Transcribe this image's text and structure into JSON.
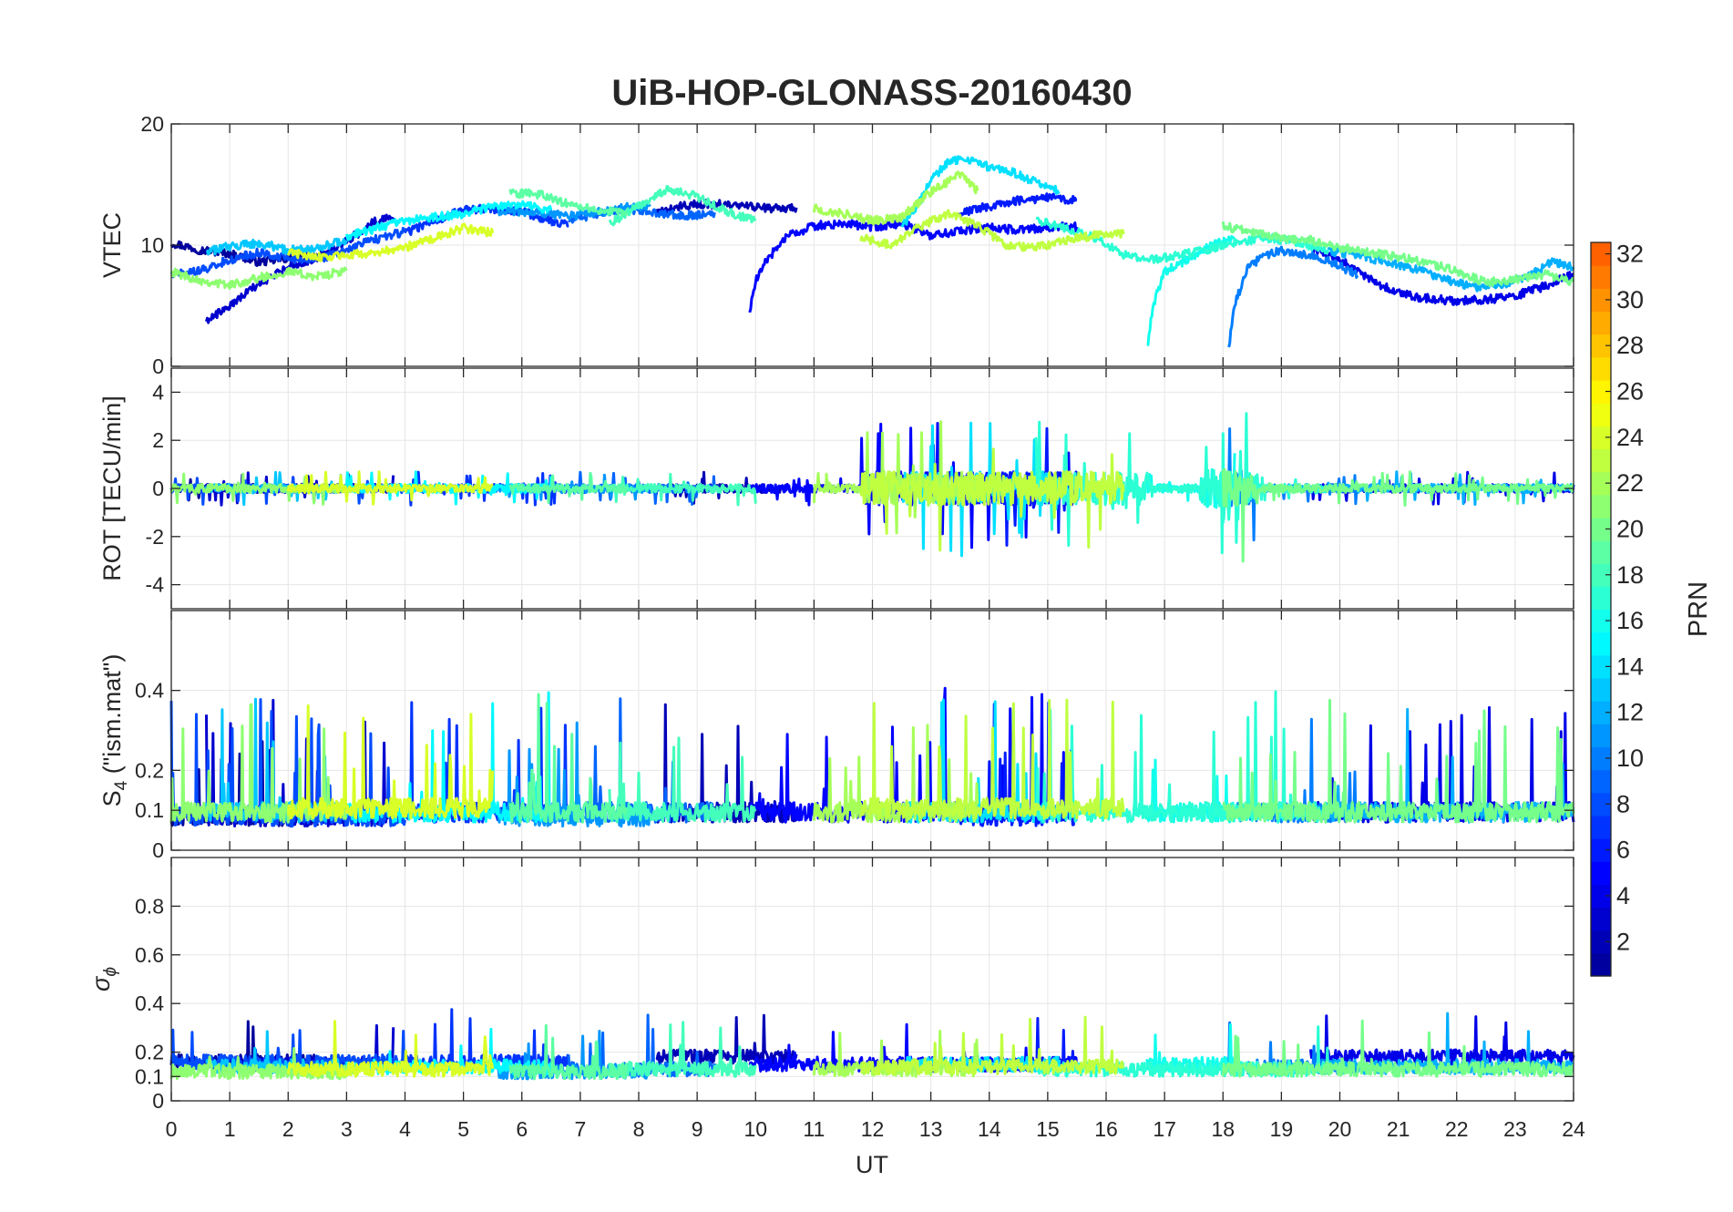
{
  "chart_data": {
    "type": "line",
    "title": "UiB-HOP-GLONASS-20160430",
    "xlabel": "UT",
    "xlim": [
      0,
      24
    ],
    "xticks": [
      "0",
      "1",
      "2",
      "3",
      "4",
      "5",
      "6",
      "7",
      "8",
      "9",
      "10",
      "11",
      "12",
      "13",
      "14",
      "15",
      "16",
      "17",
      "18",
      "19",
      "20",
      "21",
      "22",
      "23",
      "24"
    ],
    "grid": true,
    "colormap": "jet",
    "colorbar": {
      "label": "PRN",
      "range": [
        1,
        32
      ],
      "ticks": [
        "2",
        "4",
        "6",
        "8",
        "10",
        "12",
        "14",
        "16",
        "18",
        "20",
        "22",
        "24",
        "26",
        "28",
        "30",
        "32"
      ]
    },
    "panels": [
      {
        "id": "vtec",
        "ylabel": "VTEC",
        "ylim": [
          0,
          20
        ],
        "yticks": [
          "0",
          "10",
          "20"
        ]
      },
      {
        "id": "rot",
        "ylabel": "ROT [TECU/min]",
        "ylim": [
          -5,
          5
        ],
        "yticks": [
          "-4",
          "-2",
          "0",
          "2",
          "4"
        ]
      },
      {
        "id": "s4",
        "ylabel_main": "S",
        "ylabel_sub": "4",
        "ylabel_rest": " (\"ism.mat\")",
        "ylim": [
          0,
          0.6
        ],
        "yticks": [
          "0",
          "0.1",
          "0.2",
          "0.4"
        ]
      },
      {
        "id": "sigma",
        "ylabel_main": "σ",
        "ylabel_sub": "ϕ",
        "ylim": [
          0,
          1
        ],
        "yticks": [
          "0",
          "0.1",
          "0.2",
          "0.4",
          "0.6",
          "0.8"
        ]
      }
    ],
    "series": [
      {
        "prn": 1,
        "vtec": [
          [
            0,
            10.2
          ],
          [
            0.5,
            9.6
          ],
          [
            1,
            9.3
          ],
          [
            1.5,
            8.6
          ],
          [
            2,
            8.9
          ],
          [
            2.5,
            9.1
          ]
        ],
        "s4base": 0.06,
        "sigbase": 0.16
      },
      {
        "prn": 2,
        "vtec": [
          [
            8.3,
            12.6
          ],
          [
            8.8,
            13.3
          ],
          [
            9.3,
            13.4
          ],
          [
            9.8,
            13.2
          ],
          [
            10.3,
            13.0
          ],
          [
            10.7,
            13.1
          ]
        ],
        "s4base": 0.07,
        "sigbase": 0.18
      },
      {
        "prn": 3,
        "vtec": [
          [
            0.6,
            3.8
          ],
          [
            1,
            5.0
          ],
          [
            1.5,
            6.8
          ],
          [
            2,
            8.2
          ],
          [
            2.5,
            9.0
          ],
          [
            3,
            10.3
          ],
          [
            3.5,
            12.0
          ],
          [
            3.8,
            12.3
          ]
        ],
        "s4base": 0.06,
        "sigbase": 0.15
      },
      {
        "prn": 4,
        "vtec": [
          [
            19.5,
            9.8
          ],
          [
            20,
            8.8
          ],
          [
            20.5,
            7.2
          ],
          [
            21,
            6.0
          ],
          [
            21.5,
            5.6
          ],
          [
            22,
            5.4
          ],
          [
            22.5,
            5.5
          ],
          [
            23,
            5.8
          ],
          [
            23.5,
            6.6
          ],
          [
            24,
            7.6
          ]
        ],
        "s4base": 0.07,
        "sigbase": 0.18
      },
      {
        "prn": 5,
        "vtec": [
          [
            9.9,
            4.5
          ],
          [
            10,
            7.0
          ],
          [
            10.2,
            8.8
          ],
          [
            10.5,
            10.6
          ],
          [
            11,
            11.6
          ],
          [
            11.5,
            11.8
          ],
          [
            12,
            11.5
          ],
          [
            12.5,
            11.8
          ],
          [
            13,
            10.8
          ],
          [
            13.5,
            11.2
          ],
          [
            14,
            11.5
          ],
          [
            14.5,
            11.2
          ],
          [
            15,
            11.5
          ],
          [
            15.5,
            11.5
          ]
        ],
        "s4base": 0.07,
        "sigbase": 0.15
      },
      {
        "prn": 6,
        "vtec": [
          [
            13.5,
            12.7
          ],
          [
            14,
            13.2
          ],
          [
            14.5,
            13.7
          ],
          [
            15,
            13.9
          ],
          [
            15.5,
            13.7
          ]
        ],
        "s4base": 0.06,
        "sigbase": 0.15
      },
      {
        "prn": 7,
        "vtec": [
          [
            4,
            11.0
          ],
          [
            4.5,
            12.0
          ],
          [
            5,
            12.9
          ],
          [
            5.5,
            13.0
          ],
          [
            6,
            12.8
          ],
          [
            6.5,
            12.0
          ],
          [
            6.8,
            11.6
          ]
        ],
        "s4base": 0.07,
        "sigbase": 0.16
      },
      {
        "prn": 8,
        "vtec": [
          [
            0,
            7.6
          ],
          [
            0.5,
            7.9
          ],
          [
            1,
            8.8
          ],
          [
            1.5,
            9.4
          ],
          [
            2,
            8.9
          ],
          [
            2.5,
            8.8
          ],
          [
            3,
            9.6
          ],
          [
            3.5,
            10.5
          ],
          [
            4,
            11.1
          ]
        ],
        "s4base": 0.06,
        "sigbase": 0.16
      },
      {
        "prn": 9,
        "vtec": [
          [
            6.8,
            12.0
          ],
          [
            7.3,
            12.6
          ],
          [
            7.8,
            13.0
          ],
          [
            8.3,
            12.7
          ],
          [
            8.8,
            12.4
          ],
          [
            9.3,
            12.7
          ]
        ],
        "s4base": 0.07,
        "sigbase": 0.13
      },
      {
        "prn": 10,
        "vtec": [
          [
            18.1,
            1.5
          ],
          [
            18.2,
            5.0
          ],
          [
            18.4,
            8.0
          ],
          [
            18.7,
            9.2
          ],
          [
            19,
            9.5
          ],
          [
            19.5,
            9.2
          ],
          [
            20,
            8.3
          ],
          [
            20.3,
            7.5
          ]
        ],
        "s4base": 0.07,
        "sigbase": 0.14
      },
      {
        "prn": 11,
        "vtec": [
          [
            5.6,
            12.8
          ],
          [
            6.2,
            12.7
          ],
          [
            6.8,
            12.4
          ],
          [
            7.3,
            12.7
          ],
          [
            7.8,
            13.1
          ],
          [
            8.2,
            13.2
          ]
        ],
        "s4base": 0.06,
        "sigbase": 0.12
      },
      {
        "prn": 12,
        "vtec": [
          [
            19.8,
            9.5
          ],
          [
            20.3,
            9.2
          ],
          [
            20.8,
            8.6
          ],
          [
            21.3,
            8.0
          ],
          [
            21.8,
            7.2
          ],
          [
            22.3,
            6.5
          ],
          [
            22.8,
            6.8
          ],
          [
            23.3,
            7.6
          ],
          [
            23.6,
            8.6
          ],
          [
            24,
            8.2
          ]
        ],
        "s4base": 0.07,
        "sigbase": 0.14
      },
      {
        "prn": 13,
        "vtec": [
          [
            0.6,
            9.4
          ],
          [
            1,
            9.9
          ],
          [
            1.5,
            10.2
          ],
          [
            2,
            9.6
          ],
          [
            2.5,
            9.8
          ],
          [
            3,
            10.4
          ]
        ],
        "s4base": 0.07,
        "sigbase": 0.14
      },
      {
        "prn": 14,
        "vtec": [
          [
            12.5,
            11.5
          ],
          [
            12.8,
            13.5
          ],
          [
            13,
            15.4
          ],
          [
            13.3,
            16.8
          ],
          [
            13.6,
            17.2
          ],
          [
            14,
            16.4
          ],
          [
            14.4,
            16.0
          ],
          [
            14.8,
            15.2
          ],
          [
            15.2,
            14.4
          ]
        ],
        "s4base": 0.07,
        "sigbase": 0.15
      },
      {
        "prn": 15,
        "vtec": [
          [
            3,
            10.7
          ],
          [
            3.5,
            11.4
          ],
          [
            4,
            12.0
          ],
          [
            4.5,
            12.3
          ],
          [
            5,
            12.6
          ],
          [
            5.5,
            13.2
          ],
          [
            6,
            13.3
          ],
          [
            6.5,
            12.9
          ]
        ],
        "s4base": 0.07,
        "sigbase": 0.14
      },
      {
        "prn": 16,
        "vtec": [
          [
            16.7,
            1.5
          ],
          [
            16.8,
            5.0
          ],
          [
            17,
            7.8
          ],
          [
            17.3,
            8.6
          ],
          [
            17.6,
            9.4
          ],
          [
            17.8,
            10.0
          ],
          [
            18.2,
            10.5
          ]
        ],
        "s4base": 0.07,
        "sigbase": 0.15
      },
      {
        "prn": 17,
        "vtec": [
          [
            14.8,
            12.0
          ],
          [
            15.3,
            11.4
          ],
          [
            15.8,
            10.6
          ],
          [
            16.3,
            9.2
          ],
          [
            16.8,
            8.8
          ],
          [
            17.3,
            9.2
          ],
          [
            17.8,
            9.7
          ],
          [
            18.3,
            10.3
          ],
          [
            18.8,
            10.6
          ],
          [
            19.3,
            10.2
          ],
          [
            19.8,
            9.6
          ]
        ],
        "s4base": 0.07,
        "sigbase": 0.13
      },
      {
        "prn": 18,
        "vtec": [
          [
            7.5,
            11.8
          ],
          [
            8,
            13.2
          ],
          [
            8.5,
            14.6
          ],
          [
            9,
            14.0
          ],
          [
            9.5,
            12.8
          ],
          [
            10,
            12.0
          ]
        ],
        "s4base": 0.07,
        "sigbase": 0.13
      },
      {
        "prn": 19,
        "vtec": [
          [
            5.8,
            14.3
          ],
          [
            6.3,
            14.2
          ],
          [
            6.8,
            13.4
          ],
          [
            7.3,
            12.9
          ],
          [
            7.8,
            12.6
          ]
        ],
        "s4base": 0.07,
        "sigbase": 0.12
      },
      {
        "prn": 20,
        "vtec": [
          [
            18,
            11.6
          ],
          [
            18.5,
            11.0
          ],
          [
            19,
            10.6
          ],
          [
            19.5,
            10.4
          ],
          [
            20,
            9.8
          ],
          [
            20.5,
            9.4
          ],
          [
            21,
            9.0
          ],
          [
            21.5,
            8.6
          ],
          [
            22,
            7.8
          ],
          [
            22.5,
            6.9
          ],
          [
            23,
            7.2
          ],
          [
            23.5,
            7.6
          ],
          [
            24,
            7.0
          ]
        ],
        "s4base": 0.07,
        "sigbase": 0.13
      },
      {
        "prn": 21,
        "vtec": [
          [
            0,
            7.8
          ],
          [
            0.5,
            7.1
          ],
          [
            1,
            6.7
          ],
          [
            1.5,
            7.3
          ],
          [
            2,
            7.8
          ],
          [
            2.5,
            7.4
          ],
          [
            3,
            7.9
          ]
        ],
        "s4base": 0.07,
        "sigbase": 0.12
      },
      {
        "prn": 22,
        "vtec": [
          [
            11,
            13.0
          ],
          [
            11.5,
            12.6
          ],
          [
            12,
            12.0
          ],
          [
            12.5,
            12.3
          ],
          [
            13,
            14.4
          ],
          [
            13.5,
            15.8
          ],
          [
            13.8,
            14.5
          ]
        ],
        "s4base": 0.07,
        "sigbase": 0.13
      },
      {
        "prn": 23,
        "vtec": [
          [
            11.8,
            10.6
          ],
          [
            12.3,
            10.0
          ],
          [
            12.8,
            11.5
          ],
          [
            13.3,
            12.6
          ],
          [
            13.8,
            11.6
          ],
          [
            14.3,
            10.0
          ],
          [
            14.8,
            9.8
          ],
          [
            15.3,
            10.4
          ],
          [
            15.8,
            10.8
          ],
          [
            16.3,
            10.9
          ]
        ],
        "s4base": 0.08,
        "sigbase": 0.14
      },
      {
        "prn": 24,
        "vtec": [
          [
            2,
            9.4
          ],
          [
            2.5,
            9.0
          ],
          [
            3,
            9.2
          ],
          [
            3.5,
            9.4
          ],
          [
            4,
            9.8
          ],
          [
            4.5,
            10.6
          ],
          [
            5,
            11.4
          ],
          [
            5.5,
            11.0
          ]
        ],
        "s4base": 0.08,
        "sigbase": 0.13
      }
    ]
  }
}
